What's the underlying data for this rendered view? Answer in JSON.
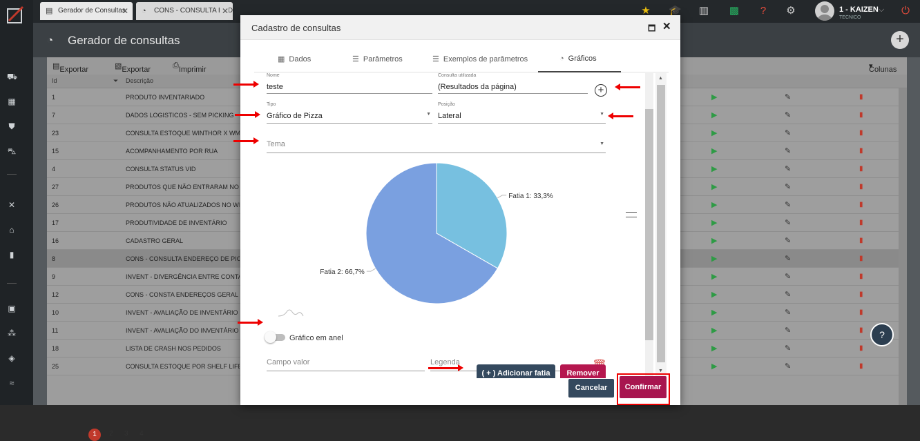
{
  "app": {
    "tabs": [
      {
        "label": "Gerador de Consultas"
      },
      {
        "label": "CONS - CONSULTA ENDE"
      }
    ],
    "user": {
      "name": "1 - KAIZEN",
      "role": "TECNICO"
    }
  },
  "page": {
    "title": "Gerador de consultas",
    "toolbar": {
      "export_excel": "Exportar Excel",
      "export_pdf": "Exportar PDF",
      "print": "Imprimir",
      "columns": "Colunas"
    },
    "table": {
      "headers": {
        "id": "Id",
        "description": "Descrição"
      },
      "rows": [
        {
          "id": "1",
          "desc": "PRODUTO INVENTARIADO"
        },
        {
          "id": "7",
          "desc": "DADOS LOGISTICOS - SEM PICKING"
        },
        {
          "id": "23",
          "desc": "CONSULTA ESTOQUE WINTHOR X WMS"
        },
        {
          "id": "15",
          "desc": "ACOMPANHAMENTO POR RUA"
        },
        {
          "id": "4",
          "desc": "CONSULTA STATUS VID"
        },
        {
          "id": "27",
          "desc": "PRODUTOS QUE NÃO ENTRARAM NO INVENTÁRIO"
        },
        {
          "id": "26",
          "desc": "PRODUTOS NÃO ATUALIZADOS NO WINTHOR"
        },
        {
          "id": "17",
          "desc": "PRODUTIVIDADE DE INVENTÁRIO"
        },
        {
          "id": "16",
          "desc": "CADASTRO GERAL"
        },
        {
          "id": "8",
          "desc": "CONS - CONSULTA ENDEREÇO DE PICKING"
        },
        {
          "id": "9",
          "desc": "INVENT - DIVERGÊNCIA ENTRE CONTAGENS"
        },
        {
          "id": "12",
          "desc": "CONS - CONSTA ENDEREÇOS GERAL"
        },
        {
          "id": "10",
          "desc": "INVENT - AVALIAÇÃO DE INVENTÁRIO"
        },
        {
          "id": "11",
          "desc": "INVENT - AVALIAÇÃO DO INVENTÁRIO"
        },
        {
          "id": "18",
          "desc": "LISTA DE CRASH NOS PEDIDOS"
        },
        {
          "id": "25",
          "desc": "CONSULTA ESTOQUE POR SHELF LIFE"
        }
      ]
    },
    "pager": {
      "pages": [
        "1",
        "2",
        "3",
        "4"
      ]
    }
  },
  "modal": {
    "title": "Cadastro de consultas",
    "tabs": [
      {
        "label": "Dados",
        "icon": "table-icon"
      },
      {
        "label": "Parâmetros",
        "icon": "sliders-icon"
      },
      {
        "label": "Exemplos de parâmetros",
        "icon": "sliders-icon"
      },
      {
        "label": "Gráficos",
        "icon": "pie-chart-icon"
      }
    ],
    "form": {
      "name_label": "Nome",
      "name_value": "teste",
      "query_label": "Consulta utilizada",
      "query_value": "(Resultados da página)",
      "type_label": "Tipo",
      "type_value": "Gráfico de Pizza",
      "position_label": "Posição",
      "position_value": "Lateral",
      "theme_placeholder": "Tema",
      "donut_label": "Gráfico em anel",
      "value_field_placeholder": "Campo valor",
      "legend_placeholder": "Legenda"
    },
    "buttons": {
      "add_slice": "( + ) Adicionar fatia",
      "remove": "Remover",
      "cancel": "Cancelar",
      "confirm": "Confirmar"
    },
    "colors": {
      "slice1": "#77c0e0",
      "slice2": "#7aa0e0",
      "confirm": "#a8154f",
      "cancel": "#34495e",
      "remove": "#b5174f"
    }
  },
  "chart_data": {
    "type": "pie",
    "categories": [
      "Fatia 1",
      "Fatia 2"
    ],
    "values": [
      33.3,
      66.7
    ],
    "labels": [
      "Fatia 1: 33,3%",
      "Fatia 2: 66,7%"
    ]
  }
}
